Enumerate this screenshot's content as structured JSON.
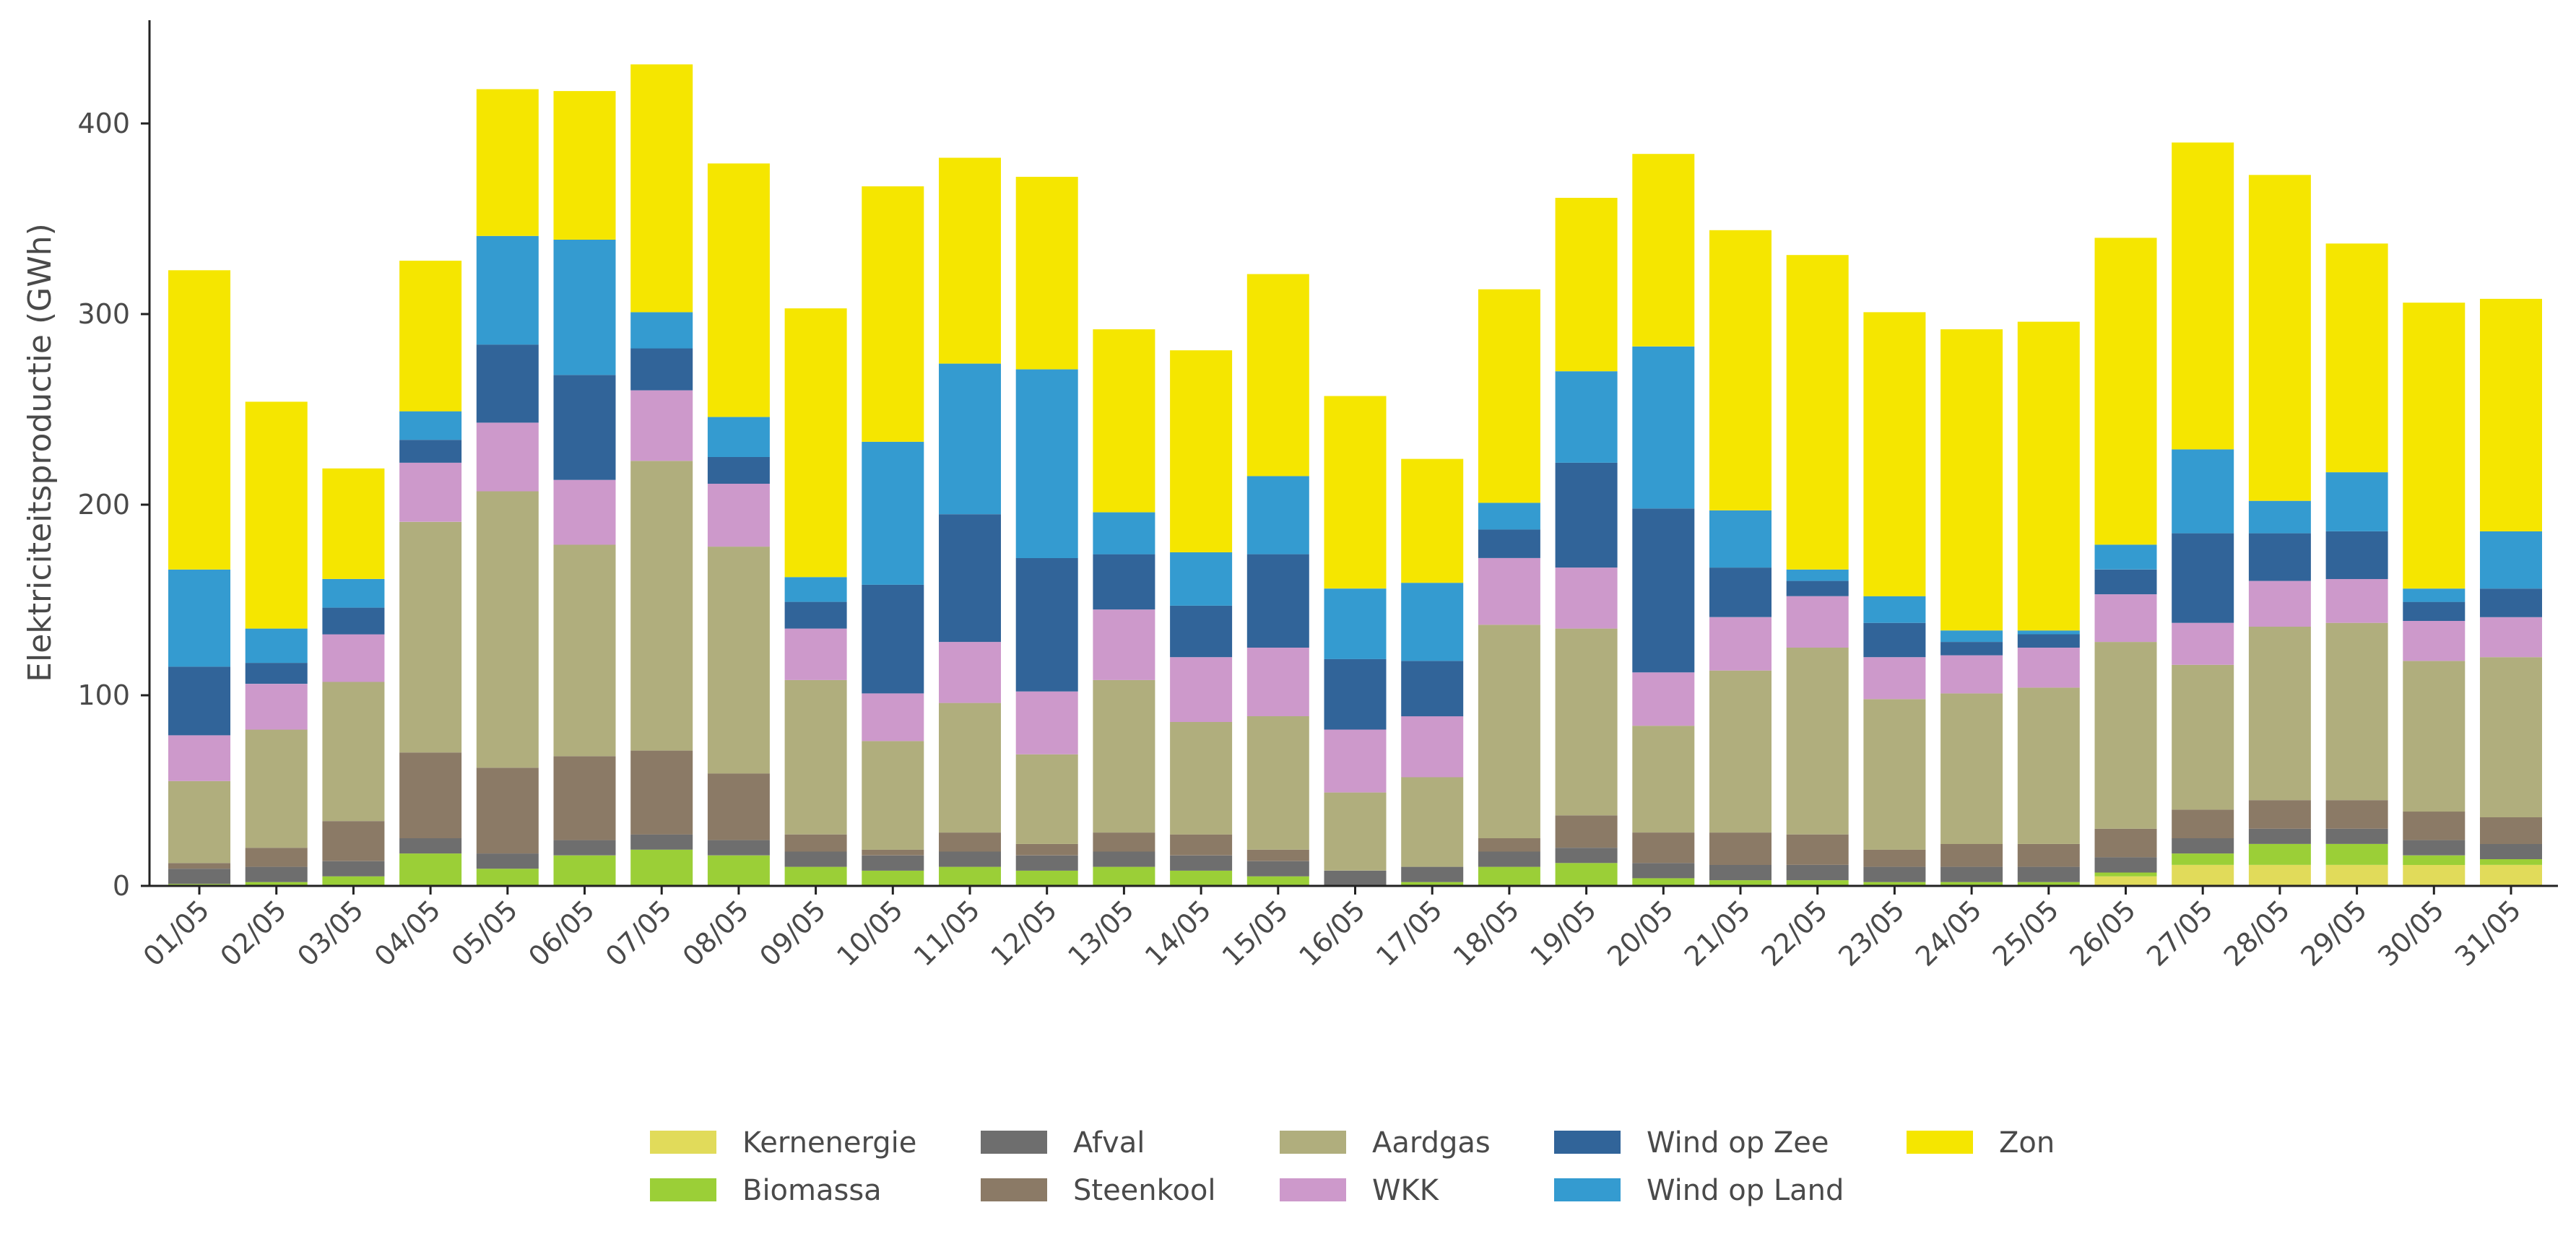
{
  "chart_data": {
    "type": "bar",
    "stacked": true,
    "title": "",
    "xlabel": "",
    "ylabel": "Elektriciteitsproductie (GWh)",
    "ylim": [
      0,
      450
    ],
    "yticks": [
      0,
      100,
      200,
      300,
      400
    ],
    "grid": false,
    "legend_position": "bottom",
    "categories": [
      "01/05",
      "02/05",
      "03/05",
      "04/05",
      "05/05",
      "06/05",
      "07/05",
      "08/05",
      "09/05",
      "10/05",
      "11/05",
      "12/05",
      "13/05",
      "14/05",
      "15/05",
      "16/05",
      "17/05",
      "18/05",
      "19/05",
      "20/05",
      "21/05",
      "22/05",
      "23/05",
      "24/05",
      "25/05",
      "26/05",
      "27/05",
      "28/05",
      "29/05",
      "30/05",
      "31/05"
    ],
    "series": [
      {
        "name": "Kernenergie",
        "color": "#e1db5a",
        "values": [
          0,
          0,
          0,
          0,
          0,
          0,
          0,
          0,
          0,
          0,
          0,
          0,
          0,
          0,
          0,
          0,
          0,
          0,
          0,
          0,
          0,
          0,
          0,
          0,
          0,
          5,
          11,
          11,
          11,
          11,
          11
        ]
      },
      {
        "name": "Biomassa",
        "color": "#9bcf37",
        "values": [
          1,
          2,
          5,
          17,
          9,
          16,
          19,
          16,
          10,
          8,
          10,
          8,
          10,
          8,
          5,
          0,
          2,
          10,
          12,
          4,
          3,
          3,
          2,
          2,
          2,
          2,
          6,
          11,
          11,
          5,
          3
        ]
      },
      {
        "name": "Afval",
        "color": "#6e6e6e",
        "values": [
          8,
          8,
          8,
          8,
          8,
          8,
          8,
          8,
          8,
          8,
          8,
          8,
          8,
          8,
          8,
          8,
          8,
          8,
          8,
          8,
          8,
          8,
          8,
          8,
          8,
          8,
          8,
          8,
          8,
          8,
          8
        ]
      },
      {
        "name": "Steenkool",
        "color": "#8b7a66",
        "values": [
          3,
          10,
          21,
          45,
          45,
          44,
          44,
          35,
          9,
          3,
          10,
          6,
          10,
          11,
          6,
          0,
          0,
          7,
          17,
          16,
          17,
          16,
          9,
          12,
          12,
          15,
          15,
          15,
          15,
          15,
          14
        ]
      },
      {
        "name": "Aardgas",
        "color": "#b0ae7d",
        "values": [
          43,
          62,
          73,
          121,
          145,
          111,
          152,
          119,
          81,
          57,
          68,
          47,
          80,
          59,
          70,
          41,
          47,
          112,
          98,
          56,
          85,
          98,
          79,
          79,
          82,
          98,
          76,
          91,
          93,
          79,
          84
        ]
      },
      {
        "name": "WKK",
        "color": "#cd99cb",
        "values": [
          24,
          24,
          25,
          31,
          36,
          34,
          37,
          33,
          27,
          25,
          32,
          33,
          37,
          34,
          36,
          33,
          32,
          35,
          32,
          28,
          28,
          27,
          22,
          20,
          21,
          25,
          22,
          24,
          23,
          21,
          21
        ]
      },
      {
        "name": "Wind op Zee",
        "color": "#316499",
        "values": [
          36,
          11,
          14,
          12,
          41,
          55,
          22,
          14,
          14,
          57,
          67,
          70,
          29,
          27,
          49,
          37,
          29,
          15,
          55,
          86,
          26,
          8,
          18,
          7,
          7,
          13,
          47,
          25,
          25,
          10,
          15
        ]
      },
      {
        "name": "Wind op Land",
        "color": "#349bd0",
        "values": [
          51,
          18,
          15,
          15,
          57,
          71,
          19,
          21,
          13,
          75,
          79,
          99,
          22,
          28,
          41,
          37,
          41,
          14,
          48,
          85,
          30,
          6,
          14,
          6,
          2,
          13,
          44,
          17,
          31,
          7,
          30
        ]
      },
      {
        "name": "Zon",
        "color": "#f5e600",
        "values": [
          157,
          119,
          58,
          79,
          77,
          78,
          130,
          133,
          141,
          134,
          108,
          101,
          96,
          106,
          106,
          101,
          65,
          112,
          91,
          101,
          147,
          165,
          149,
          158,
          162,
          161,
          161,
          171,
          120,
          150,
          122
        ]
      }
    ]
  }
}
